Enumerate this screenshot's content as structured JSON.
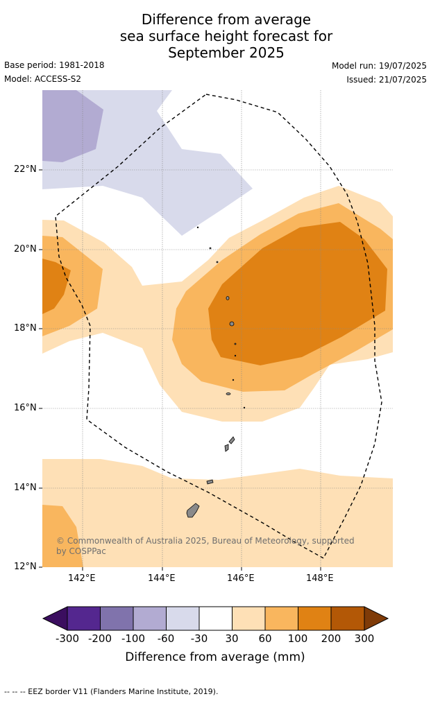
{
  "title": {
    "line1": "Difference from average",
    "line2": "sea surface height forecast for",
    "line3": "September 2025"
  },
  "meta": {
    "base_period": "Base period: 1981-2018",
    "model": "Model: ACCESS-S2",
    "model_run": "Model run: 19/07/2025",
    "issued": "Issued: 21/07/2025"
  },
  "map": {
    "lat_ticks": [
      "22°N",
      "20°N",
      "18°N",
      "16°N",
      "14°N",
      "12°N"
    ],
    "lon_ticks": [
      "142°E",
      "144°E",
      "146°E",
      "148°E"
    ],
    "lat_range": [
      12,
      24
    ],
    "lon_range": [
      141,
      149.8
    ]
  },
  "colorbar": {
    "labels": [
      "-300",
      "-200",
      "-100",
      "-60",
      "-30",
      "30",
      "60",
      "100",
      "200",
      "300"
    ],
    "colors": [
      "#3b0e5f",
      "#54278f",
      "#8073ac",
      "#b2abd2",
      "#d8daeb",
      "#ffffff",
      "#fee0b6",
      "#f9b65e",
      "#e08214",
      "#b35806",
      "#7f3b08"
    ],
    "title": "Difference from average (mm)"
  },
  "credit": "© Commonwealth of Australia 2025, Bureau of Meteorology, supported by COSPPac",
  "footer": "--  --  -- EEZ border V11 (Flanders Marine Institute, 2019)."
}
